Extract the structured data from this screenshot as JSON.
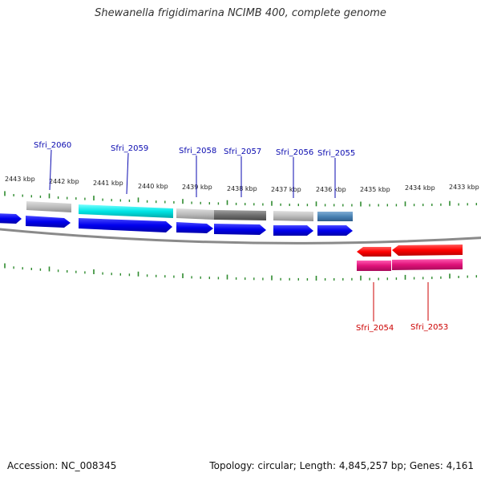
{
  "title": "Shewanella frigidimarina NCIMB 400, complete genome",
  "accession_label": "Accession: NC_008345",
  "summary_label": "Topology: circular; Length: 4,845,257 bp; Genes: 4,161",
  "ruler_labels": [
    "2443 kbp",
    "2442 kbp",
    "2441 kbp",
    "2440 kbp",
    "2439 kbp",
    "2438 kbp",
    "2437 kbp",
    "2436 kbp",
    "2435 kbp",
    "2434 kbp",
    "2433 kbp"
  ],
  "gene_labels_forward": [
    "Sfri_2060",
    "Sfri_2059",
    "Sfri_2058",
    "Sfri_2057",
    "Sfri_2056",
    "Sfri_2055"
  ],
  "gene_labels_reverse": [
    "Sfri_2054",
    "Sfri_2053"
  ],
  "colors": {
    "forward_label": "#0a0ab0",
    "reverse_label": "#cc0000",
    "cds_forward": "#0000ee",
    "cds_reverse": "#ff0000",
    "magenta": "#e0127a",
    "cyan": "#00e5e5",
    "light_gray": "#bdbdbd",
    "dark_gray": "#6e6e6e",
    "steel_blue": "#4a82b4",
    "tick": "#2e8b2e",
    "backbone": "#8a8a8a"
  }
}
